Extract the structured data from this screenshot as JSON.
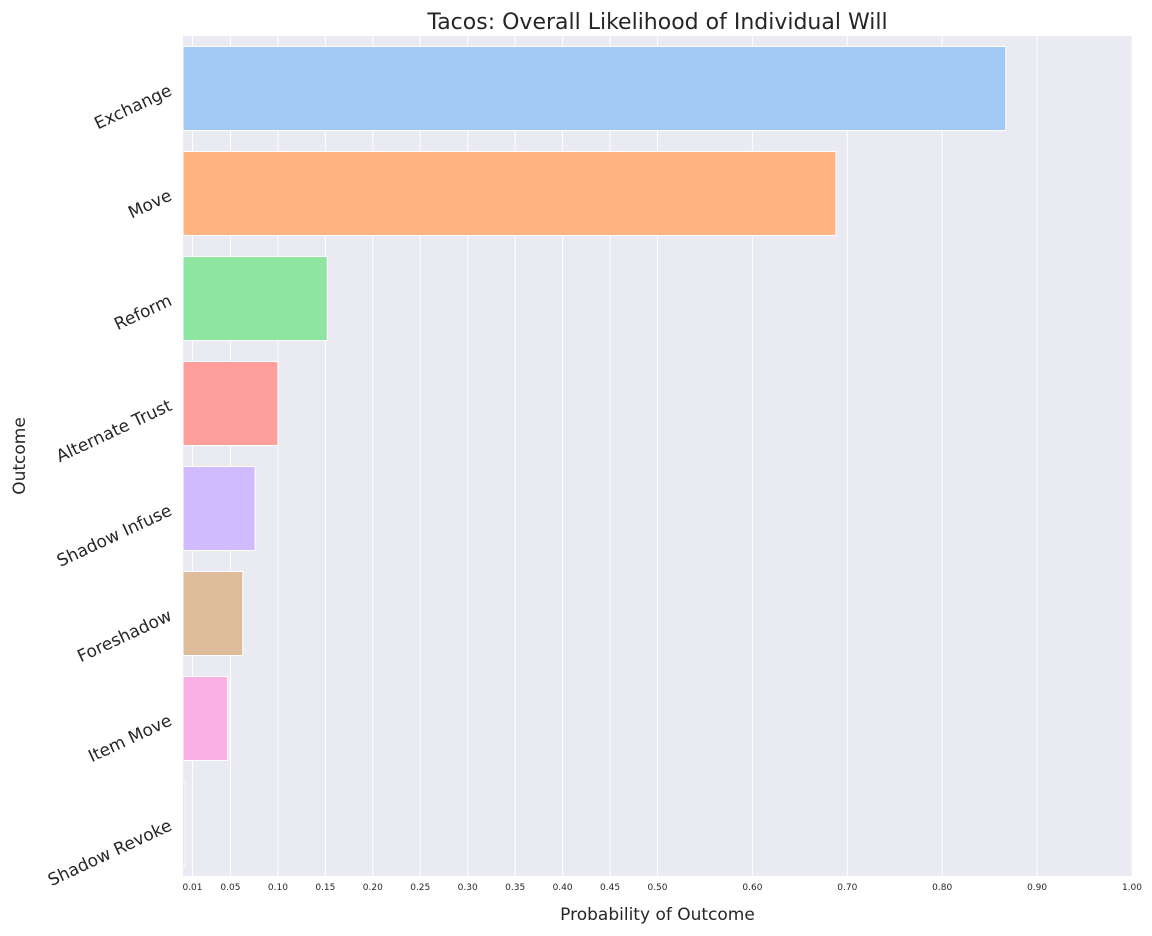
{
  "chart_data": {
    "type": "bar",
    "orientation": "horizontal",
    "title": "Tacos: Overall Likelihood of Individual Will",
    "xlabel": "Probability of Outcome",
    "ylabel": "Outcome",
    "xlim": [
      0,
      1.0
    ],
    "grid": true,
    "background": "#eaeaf2",
    "grid_color": "#ffffff",
    "categories": [
      "Exchange",
      "Move",
      "Reform",
      "Alternate Trust",
      "Shadow Infuse",
      "Foreshadow",
      "Item Move",
      "Shadow Revoke"
    ],
    "values": [
      0.867,
      0.688,
      0.152,
      0.1,
      0.076,
      0.063,
      0.047,
      0.002
    ],
    "colors": [
      "#a1c9f4",
      "#ffb482",
      "#8de5a1",
      "#ff9f9b",
      "#d0bbff",
      "#debb9b",
      "#fab0e4",
      "#cfcfcf"
    ],
    "xticks": [
      0.01,
      0.05,
      0.1,
      0.15,
      0.2,
      0.25,
      0.3,
      0.35,
      0.4,
      0.45,
      0.5,
      0.6,
      0.7,
      0.8,
      0.9,
      1.0
    ],
    "xtick_labels": [
      "0.01",
      "0.05",
      "0.10",
      "0.15",
      "0.20",
      "0.25",
      "0.30",
      "0.35",
      "0.40",
      "0.45",
      "0.50",
      "0.60",
      "0.70",
      "0.80",
      "0.90",
      "1.00"
    ]
  }
}
